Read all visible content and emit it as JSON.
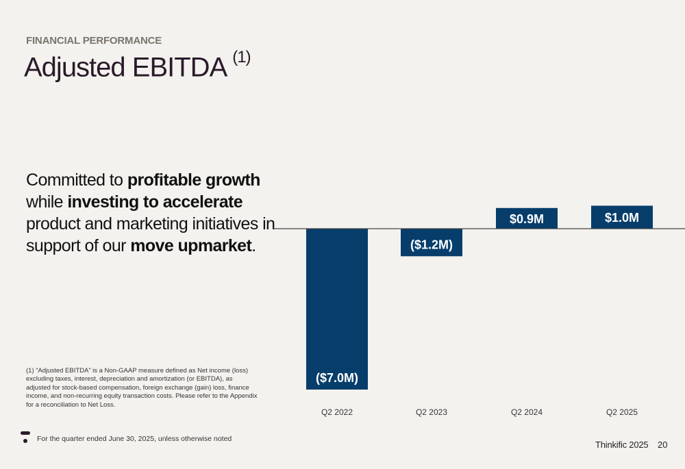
{
  "header": {
    "eyebrow": "FINANCIAL PERFORMANCE",
    "title": "Adjusted EBITDA",
    "title_note": "(1)"
  },
  "headline": {
    "p1": "Committed to ",
    "b1": "profitable growth",
    "p2": " while ",
    "b2": "investing to accelerate",
    "p3": " product and marketing initiatives in support of our ",
    "b3": "move upmarket",
    "p4": "."
  },
  "footnote": "(1)  “Adjusted EBITDA” is a Non-GAAP measure defined as Net income (loss) excluding taxes, interest, depreciation and amortization (or EBITDA), as adjusted for stock-based compensation, foreign exchange (gain) loss, finance income, and non-recurring equity transaction costs. Please refer to the Appendix for a reconciliation to Net Loss.",
  "bottom_note": "For the quarter ended June 30, 2025, unless otherwise noted",
  "brand": "Thinkific 2025",
  "page_number": "20",
  "colors": {
    "bar": "#063d6b",
    "axis": "#444444",
    "label_text": "#ffffff"
  },
  "chart_data": {
    "type": "bar",
    "categories": [
      "Q2 2022",
      "Q2 2023",
      "Q2 2024",
      "Q2 2025"
    ],
    "values": [
      -7.0,
      -1.2,
      0.9,
      1.0
    ],
    "data_labels": [
      "($7.0M)",
      "($1.2M)",
      "$0.9M",
      "$1.0M"
    ],
    "unit": "$M",
    "ylim": [
      -7.0,
      1.0
    ],
    "grid": false,
    "legend": "none"
  }
}
